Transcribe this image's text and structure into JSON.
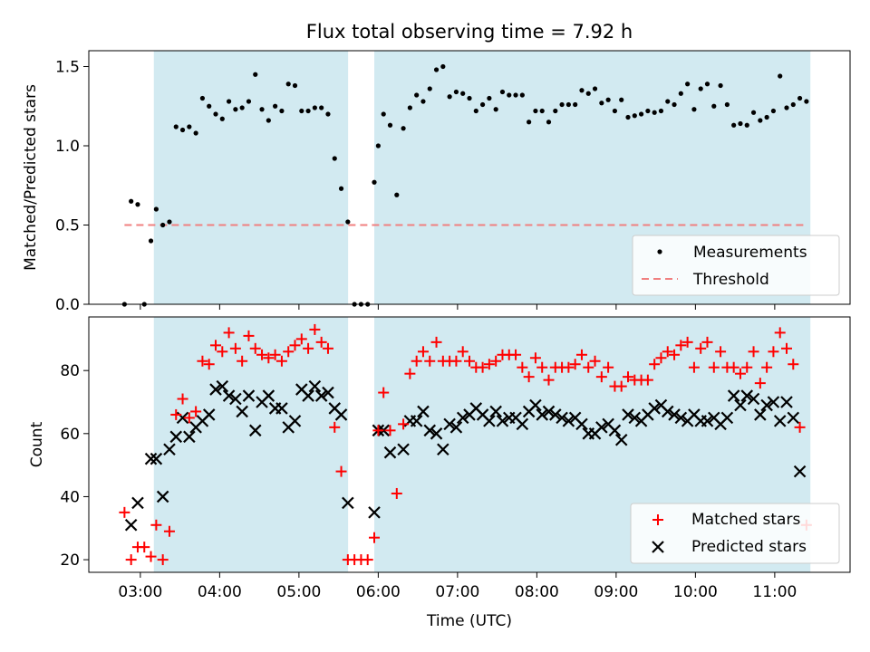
{
  "title": "Flux total observing time = 7.92 h",
  "colors": {
    "span": "#add8e6",
    "threshold": "#f08080",
    "matched": "#ff0000",
    "predicted": "#000000",
    "measurement": "#000000"
  },
  "chart_data": [
    {
      "type": "scatter",
      "panel": "top",
      "title": "Flux total observing time = 7.92 h",
      "xlabel": "",
      "ylabel": "Matched/Predicted stars",
      "ylim": [
        0,
        1.6
      ],
      "yticks": [
        "0.0",
        "0.5",
        "1.0",
        "1.5"
      ],
      "xlim_hours": [
        2.35,
        11.95
      ],
      "shaded_spans_hours": [
        [
          3.17,
          5.62
        ],
        [
          5.95,
          11.45
        ]
      ],
      "legend_placement": "lower right",
      "series": [
        {
          "name": "Measurements",
          "marker": "dot",
          "x": [
            "02:48",
            "02:53",
            "02:58",
            "03:03",
            "03:08",
            "03:12",
            "03:17",
            "03:22",
            "03:27",
            "03:32",
            "03:37",
            "03:42",
            "03:47",
            "03:52",
            "03:57",
            "04:02",
            "04:07",
            "04:12",
            "04:17",
            "04:22",
            "04:27",
            "04:32",
            "04:37",
            "04:42",
            "04:47",
            "04:52",
            "04:57",
            "05:02",
            "05:07",
            "05:12",
            "05:17",
            "05:22",
            "05:27",
            "05:32",
            "05:37",
            "05:42",
            "05:47",
            "05:52",
            "05:57",
            "06:00",
            "06:04",
            "06:09",
            "06:14",
            "06:19",
            "06:24",
            "06:29",
            "06:34",
            "06:39",
            "06:44",
            "06:49",
            "06:54",
            "06:59",
            "07:04",
            "07:09",
            "07:14",
            "07:19",
            "07:24",
            "07:29",
            "07:34",
            "07:39",
            "07:44",
            "07:49",
            "07:54",
            "07:59",
            "08:04",
            "08:09",
            "08:14",
            "08:19",
            "08:24",
            "08:29",
            "08:34",
            "08:39",
            "08:44",
            "08:49",
            "08:54",
            "08:59",
            "09:04",
            "09:09",
            "09:14",
            "09:19",
            "09:24",
            "09:29",
            "09:34",
            "09:39",
            "09:44",
            "09:49",
            "09:54",
            "09:59",
            "10:04",
            "10:09",
            "10:14",
            "10:19",
            "10:24",
            "10:29",
            "10:34",
            "10:39",
            "10:44",
            "10:49",
            "10:54",
            "10:59",
            "11:04",
            "11:09",
            "11:14",
            "11:19",
            "11:24"
          ],
          "y": [
            0.0,
            0.65,
            0.63,
            0.0,
            0.4,
            0.6,
            0.5,
            0.52,
            1.12,
            1.1,
            1.12,
            1.08,
            1.3,
            1.25,
            1.2,
            1.17,
            1.28,
            1.23,
            1.24,
            1.28,
            1.45,
            1.23,
            1.16,
            1.25,
            1.22,
            1.39,
            1.38,
            1.22,
            1.22,
            1.24,
            1.24,
            1.2,
            0.92,
            0.73,
            0.52,
            0.0,
            0.0,
            0.0,
            0.77,
            1.0,
            1.2,
            1.13,
            0.69,
            1.11,
            1.24,
            1.32,
            1.28,
            1.36,
            1.48,
            1.5,
            1.31,
            1.34,
            1.33,
            1.3,
            1.22,
            1.26,
            1.3,
            1.23,
            1.34,
            1.32,
            1.32,
            1.32,
            1.15,
            1.22,
            1.22,
            1.15,
            1.22,
            1.26,
            1.26,
            1.26,
            1.35,
            1.33,
            1.36,
            1.27,
            1.29,
            1.22,
            1.29,
            1.18,
            1.19,
            1.2,
            1.22,
            1.21,
            1.22,
            1.28,
            1.26,
            1.33,
            1.39,
            1.23,
            1.36,
            1.39,
            1.25,
            1.38,
            1.26,
            1.13,
            1.14,
            1.13,
            1.21,
            1.16,
            1.18,
            1.22,
            1.44,
            1.24,
            1.26,
            1.3,
            1.28
          ]
        },
        {
          "name": "Threshold",
          "marker": "dashed-line",
          "x": [
            "02:48",
            "11:24"
          ],
          "y": [
            0.5,
            0.5
          ]
        }
      ]
    },
    {
      "type": "scatter",
      "panel": "bottom",
      "xlabel": "Time (UTC)",
      "ylabel": "Count",
      "ylim": [
        16,
        97
      ],
      "yticks": [
        "20",
        "40",
        "60",
        "80"
      ],
      "xticks": [
        "03:00",
        "04:00",
        "05:00",
        "06:00",
        "07:00",
        "08:00",
        "09:00",
        "10:00",
        "11:00"
      ],
      "xlim_hours": [
        2.35,
        11.95
      ],
      "shaded_spans_hours": [
        [
          3.17,
          5.62
        ],
        [
          5.95,
          11.45
        ]
      ],
      "legend_placement": "lower right",
      "series": [
        {
          "name": "Matched stars",
          "marker": "plus",
          "x": [
            "02:48",
            "02:53",
            "02:58",
            "03:03",
            "03:08",
            "03:12",
            "03:17",
            "03:22",
            "03:27",
            "03:32",
            "03:37",
            "03:42",
            "03:47",
            "03:52",
            "03:57",
            "04:02",
            "04:07",
            "04:12",
            "04:17",
            "04:22",
            "04:27",
            "04:32",
            "04:37",
            "04:42",
            "04:47",
            "04:52",
            "04:57",
            "05:02",
            "05:07",
            "05:12",
            "05:17",
            "05:22",
            "05:27",
            "05:32",
            "05:37",
            "05:42",
            "05:47",
            "05:52",
            "05:57",
            "06:00",
            "06:04",
            "06:09",
            "06:14",
            "06:19",
            "06:24",
            "06:29",
            "06:34",
            "06:39",
            "06:44",
            "06:49",
            "06:54",
            "06:59",
            "07:04",
            "07:09",
            "07:14",
            "07:19",
            "07:24",
            "07:29",
            "07:34",
            "07:39",
            "07:44",
            "07:49",
            "07:54",
            "07:59",
            "08:04",
            "08:09",
            "08:14",
            "08:19",
            "08:24",
            "08:29",
            "08:34",
            "08:39",
            "08:44",
            "08:49",
            "08:54",
            "08:59",
            "09:04",
            "09:09",
            "09:14",
            "09:19",
            "09:24",
            "09:29",
            "09:34",
            "09:39",
            "09:44",
            "09:49",
            "09:54",
            "09:59",
            "10:04",
            "10:09",
            "10:14",
            "10:19",
            "10:24",
            "10:29",
            "10:34",
            "10:39",
            "10:44",
            "10:49",
            "10:54",
            "10:59",
            "11:04",
            "11:09",
            "11:14",
            "11:19",
            "11:24"
          ],
          "y": [
            35,
            20,
            24,
            24,
            21,
            31,
            20,
            29,
            66,
            71,
            65,
            67,
            83,
            82,
            88,
            86,
            92,
            87,
            83,
            91,
            87,
            85,
            84,
            85,
            83,
            86,
            88,
            90,
            87,
            93,
            89,
            87,
            62,
            48,
            20,
            20,
            20,
            20,
            27,
            61,
            73,
            61,
            41,
            63,
            79,
            83,
            86,
            83,
            89,
            83,
            83,
            83,
            86,
            83,
            81,
            81,
            82,
            83,
            85,
            85,
            85,
            81,
            78,
            84,
            81,
            77,
            81,
            81,
            81,
            82,
            85,
            81,
            83,
            78,
            81,
            75,
            75,
            78,
            77,
            77,
            77,
            82,
            84,
            86,
            85,
            88,
            89,
            81,
            87,
            89,
            81,
            86,
            81,
            81,
            79,
            81,
            86,
            76,
            81,
            86,
            92,
            87,
            82,
            62,
            31
          ]
        },
        {
          "name": "Predicted stars",
          "marker": "x",
          "x": [
            "02:48",
            "02:53",
            "02:58",
            "03:03",
            "03:08",
            "03:12",
            "03:17",
            "03:22",
            "03:27",
            "03:32",
            "03:37",
            "03:42",
            "03:47",
            "03:52",
            "03:57",
            "04:02",
            "04:07",
            "04:12",
            "04:17",
            "04:22",
            "04:27",
            "04:32",
            "04:37",
            "04:42",
            "04:47",
            "04:52",
            "04:57",
            "05:02",
            "05:07",
            "05:12",
            "05:17",
            "05:22",
            "05:27",
            "05:32",
            "05:37",
            "05:42",
            "05:47",
            "05:52",
            "05:57",
            "06:00",
            "06:04",
            "06:09",
            "06:14",
            "06:19",
            "06:24",
            "06:29",
            "06:34",
            "06:39",
            "06:44",
            "06:49",
            "06:54",
            "06:59",
            "07:04",
            "07:09",
            "07:14",
            "07:19",
            "07:24",
            "07:29",
            "07:34",
            "07:39",
            "07:44",
            "07:49",
            "07:54",
            "07:59",
            "08:04",
            "08:09",
            "08:14",
            "08:19",
            "08:24",
            "08:29",
            "08:34",
            "08:39",
            "08:44",
            "08:49",
            "08:54",
            "08:59",
            "09:04",
            "09:09",
            "09:14",
            "09:19",
            "09:24",
            "09:29",
            "09:34",
            "09:39",
            "09:44",
            "09:49",
            "09:54",
            "09:59",
            "10:04",
            "10:09",
            "10:14",
            "10:19",
            "10:24",
            "10:29",
            "10:34",
            "10:39",
            "10:44",
            "10:49",
            "10:54",
            "10:59",
            "11:04",
            "11:09",
            "11:14",
            "11:19",
            "11:24"
          ],
          "y": [
            null,
            31,
            38,
            null,
            52,
            52,
            40,
            55,
            59,
            65,
            59,
            62,
            64,
            66,
            74,
            75,
            72,
            71,
            67,
            72,
            61,
            70,
            72,
            68,
            68,
            62,
            64,
            74,
            72,
            75,
            72,
            73,
            68,
            66,
            38,
            null,
            null,
            null,
            35,
            61,
            61,
            54,
            null,
            55,
            64,
            64,
            67,
            61,
            60,
            55,
            63,
            62,
            65,
            66,
            68,
            66,
            64,
            67,
            64,
            65,
            65,
            63,
            67,
            69,
            66,
            67,
            66,
            65,
            64,
            65,
            63,
            60,
            60,
            62,
            63,
            61,
            58,
            66,
            65,
            64,
            66,
            68,
            69,
            67,
            66,
            65,
            64,
            66,
            64,
            64,
            65,
            63,
            65,
            72,
            69,
            72,
            71,
            66,
            69,
            70,
            64,
            70,
            65,
            48,
            null
          ]
        }
      ]
    }
  ]
}
